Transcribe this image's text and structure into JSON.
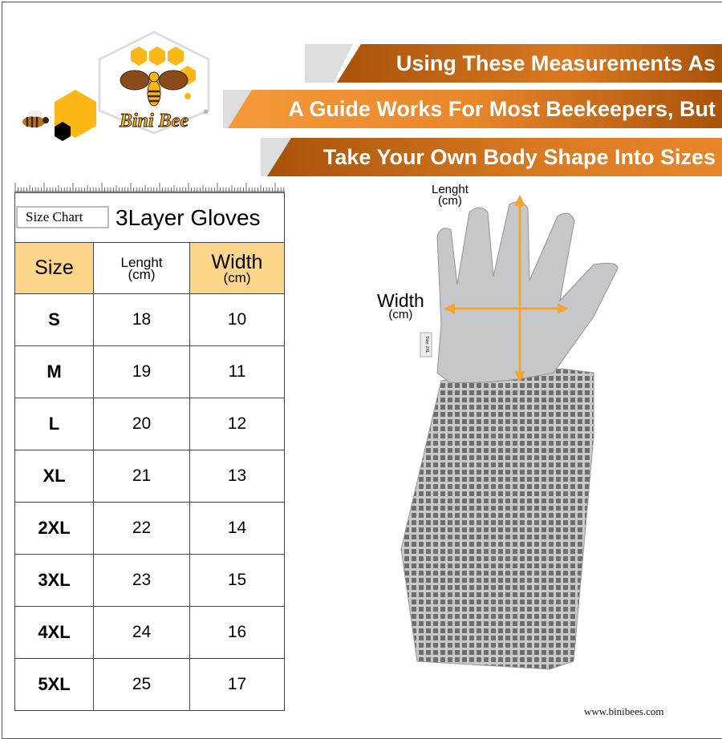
{
  "brand": {
    "name": "Bini Bee",
    "registered": "®",
    "website": "www.binibees.com"
  },
  "banners": [
    "Using These Measurements As",
    "A Guide Works For Most Beekeepers, But",
    "Take Your Own Body Shape Into Sizes"
  ],
  "colors": {
    "orange_dark": "#a8520a",
    "orange_light": "#f59a3a",
    "header_yellow": "#fbd58a",
    "honey": "#fbb716"
  },
  "table": {
    "badge": "Size Chart",
    "title": "3Layer Gloves",
    "headers": {
      "size": "Size",
      "length": "Lenght",
      "length_unit": "(cm)",
      "width": "Width",
      "width_unit": "(cm)"
    },
    "rows": [
      {
        "size": "S",
        "length": "18",
        "width": "10"
      },
      {
        "size": "M",
        "length": "19",
        "width": "11"
      },
      {
        "size": "L",
        "length": "20",
        "width": "12"
      },
      {
        "size": "XL",
        "length": "21",
        "width": "13"
      },
      {
        "size": "2XL",
        "length": "22",
        "width": "14"
      },
      {
        "size": "3XL",
        "length": "23",
        "width": "15"
      },
      {
        "size": "4XL",
        "length": "24",
        "width": "16"
      },
      {
        "size": "5XL",
        "length": "25",
        "width": "17"
      }
    ]
  },
  "diagram": {
    "length_label": "Lenght",
    "length_unit": "(cm)",
    "width_label": "Width",
    "width_unit": "(cm)",
    "tag": "Size: 2XL"
  }
}
